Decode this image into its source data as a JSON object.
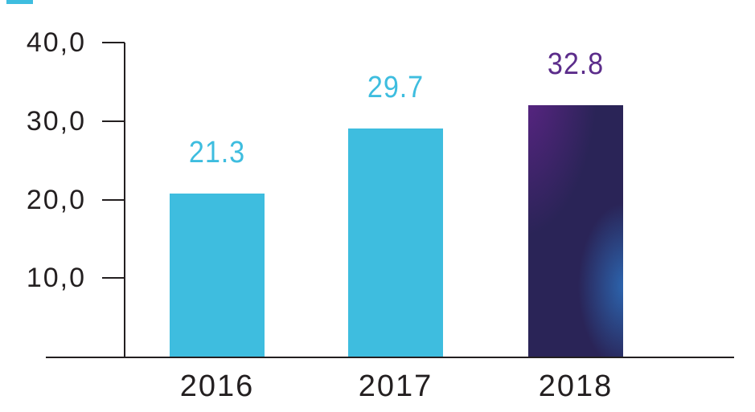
{
  "chart_data": {
    "type": "bar",
    "categories": [
      "2016",
      "2017",
      "2018"
    ],
    "values": [
      21.3,
      29.7,
      32.8
    ],
    "value_labels": [
      "21.3",
      "29.7",
      "32.8"
    ],
    "y_ticks": [
      "40,0",
      "30,0",
      "20,0",
      "10,0"
    ],
    "y_tick_values": [
      40,
      30,
      20,
      10
    ],
    "ylim": [
      0,
      40
    ],
    "title": "",
    "xlabel": "",
    "ylabel": "",
    "grid": false,
    "legend": false,
    "bar_colors": [
      "#3EBDDF",
      "#3EBDDF",
      "gradient"
    ],
    "label_colors": [
      "#3EBDDF",
      "#3EBDDF",
      "#5C2D8B"
    ]
  },
  "colors": {
    "bar_cyan": "#3EBDDF",
    "bar_gradient_purple": "#5F2488",
    "bar_gradient_indigo": "#2A2457",
    "bar_gradient_blue_glow": "#2C69B4",
    "value_label_purple": "#5C2D8B",
    "axis_and_text": "#231F20",
    "background": "#FFFFFF",
    "top_dash": "#3EBDDF"
  }
}
